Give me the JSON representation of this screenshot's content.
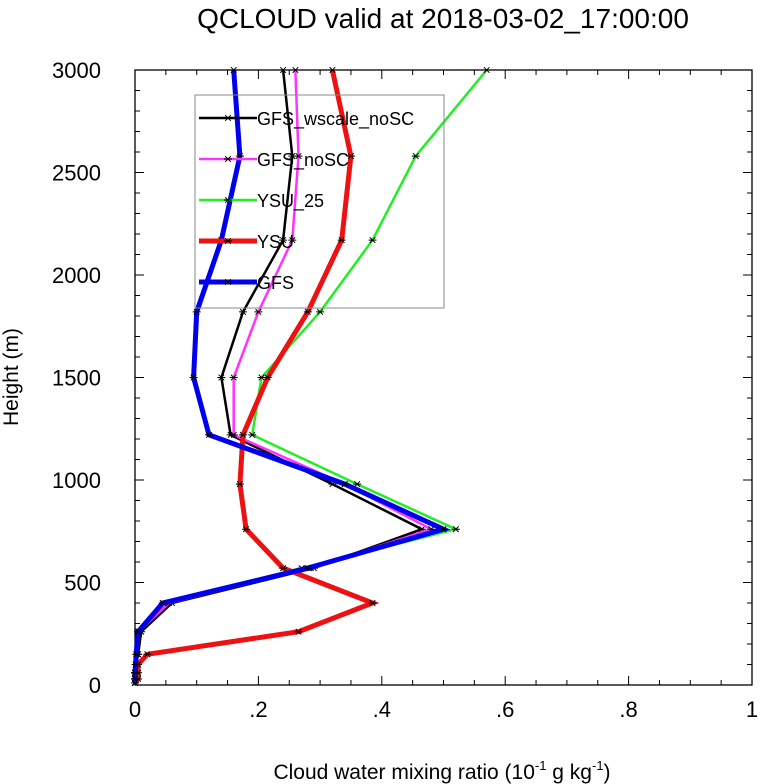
{
  "chart_data": {
    "type": "line",
    "title": "QCLOUD valid at 2018-03-02_17:00:00",
    "xlabel_main": "Cloud water mixing ratio (10",
    "xlabel_sup1": "-1",
    "xlabel_mid": " g kg",
    "xlabel_sup2": "-1",
    "xlabel_end": ")",
    "ylabel": "Height (m)",
    "xlim": [
      0,
      1
    ],
    "ylim": [
      0,
      3000
    ],
    "x_ticks": [
      {
        "value": 0,
        "label": "0"
      },
      {
        "value": 0.2,
        "label": ".2"
      },
      {
        "value": 0.4,
        "label": ".4"
      },
      {
        "value": 0.6,
        "label": ".6"
      },
      {
        "value": 0.8,
        "label": ".8"
      },
      {
        "value": 1,
        "label": "1"
      }
    ],
    "y_ticks": [
      {
        "value": 0,
        "label": "0"
      },
      {
        "value": 500,
        "label": "500"
      },
      {
        "value": 1000,
        "label": "1000"
      },
      {
        "value": 1500,
        "label": "1500"
      },
      {
        "value": 2000,
        "label": "2000"
      },
      {
        "value": 2500,
        "label": "2500"
      },
      {
        "value": 3000,
        "label": "3000"
      }
    ],
    "heights": [
      10,
      30,
      60,
      100,
      150,
      260,
      400,
      570,
      760,
      980,
      1220,
      1500,
      1820,
      2170,
      2580,
      3000
    ],
    "legend_position": "top-left",
    "series": [
      {
        "name": "GFS_wscale_noSC",
        "color": "#000000",
        "width": 2.5,
        "values": [
          0.0,
          0.0,
          0.0,
          0.002,
          0.005,
          0.01,
          0.06,
          0.29,
          0.465,
          0.32,
          0.155,
          0.14,
          0.175,
          0.24,
          0.255,
          0.24
        ]
      },
      {
        "name": "GFS_noSC",
        "color": "#ff33ff",
        "width": 2.5,
        "values": [
          0.0,
          0.0,
          0.0,
          0.002,
          0.004,
          0.006,
          0.055,
          0.285,
          0.48,
          0.34,
          0.16,
          0.16,
          0.2,
          0.255,
          0.265,
          0.26
        ]
      },
      {
        "name": "YSU_25",
        "color": "#22ee22",
        "width": 2.5,
        "values": [
          0.0,
          0.0,
          0.0,
          0.002,
          0.004,
          0.006,
          0.045,
          0.27,
          0.52,
          0.36,
          0.19,
          0.205,
          0.3,
          0.385,
          0.455,
          0.57
        ]
      },
      {
        "name": "YSU",
        "color": "#ee1111",
        "width": 5,
        "values": [
          0.0,
          0.005,
          0.005,
          0.005,
          0.02,
          0.265,
          0.385,
          0.24,
          0.18,
          0.17,
          0.175,
          0.215,
          0.28,
          0.335,
          0.35,
          0.32
        ]
      },
      {
        "name": "GFS",
        "color": "#0000ee",
        "width": 5,
        "values": [
          0.0,
          0.0,
          0.0,
          0.001,
          0.002,
          0.005,
          0.045,
          0.28,
          0.5,
          0.34,
          0.12,
          0.095,
          0.1,
          0.14,
          0.17,
          0.16
        ]
      }
    ]
  }
}
